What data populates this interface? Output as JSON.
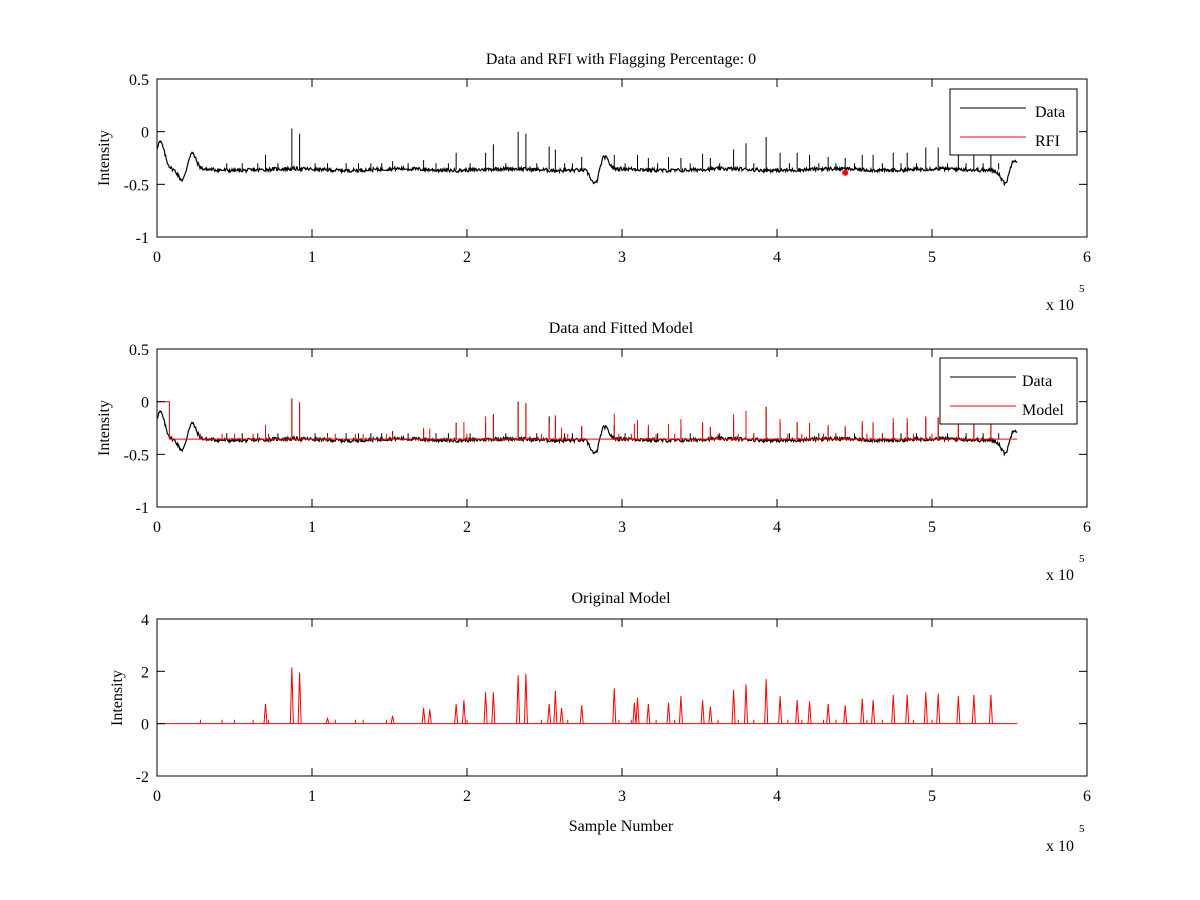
{
  "figure": {
    "background": "#ffffff",
    "data_color": "#000000",
    "model_color": "#ff0000",
    "exponent_label_base": "x 10",
    "exponent_label_power": "5"
  },
  "chart_data": [
    {
      "type": "line",
      "title": "Data and RFI with Flagging Percentage: 0",
      "xlabel": "",
      "ylabel": "Intensity",
      "xlim": [
        0,
        6
      ],
      "ylim": [
        -1,
        0.5
      ],
      "x_ticks": [
        "0",
        "1",
        "2",
        "3",
        "4",
        "5",
        "6"
      ],
      "y_ticks": [
        "-1",
        "-0.5",
        "0",
        "0.5"
      ],
      "x_scale_exponent": 5,
      "grid": false,
      "legend": "top-right",
      "baseline": -0.36,
      "x_end": 5.55,
      "dips": [
        {
          "x": 0.02,
          "y": -0.1
        },
        {
          "x": 0.17,
          "y": -0.49
        },
        {
          "x": 0.22,
          "y": -0.19
        },
        {
          "x": 2.83,
          "y": -0.52
        },
        {
          "x": 2.88,
          "y": -0.22
        },
        {
          "x": 5.48,
          "y": -0.52
        },
        {
          "x": 5.52,
          "y": -0.22
        }
      ],
      "spikes": [
        {
          "x": 0.7,
          "y": -0.22
        },
        {
          "x": 0.87,
          "y": 0.03
        },
        {
          "x": 0.92,
          "y": -0.02
        },
        {
          "x": 1.1,
          "y": -0.3
        },
        {
          "x": 1.52,
          "y": -0.28
        },
        {
          "x": 1.72,
          "y": -0.27
        },
        {
          "x": 1.93,
          "y": -0.2
        },
        {
          "x": 2.12,
          "y": -0.2
        },
        {
          "x": 2.17,
          "y": -0.12
        },
        {
          "x": 2.33,
          "y": -0.0
        },
        {
          "x": 2.38,
          "y": -0.02
        },
        {
          "x": 2.53,
          "y": -0.14
        },
        {
          "x": 2.57,
          "y": -0.17
        },
        {
          "x": 2.74,
          "y": -0.24
        },
        {
          "x": 2.95,
          "y": -0.22
        },
        {
          "x": 3.1,
          "y": -0.22
        },
        {
          "x": 3.17,
          "y": -0.25
        },
        {
          "x": 3.3,
          "y": -0.24
        },
        {
          "x": 3.38,
          "y": -0.25
        },
        {
          "x": 3.52,
          "y": -0.21
        },
        {
          "x": 3.57,
          "y": -0.25
        },
        {
          "x": 3.72,
          "y": -0.17
        },
        {
          "x": 3.8,
          "y": -0.11
        },
        {
          "x": 3.93,
          "y": -0.05
        },
        {
          "x": 4.02,
          "y": -0.2
        },
        {
          "x": 4.13,
          "y": -0.2
        },
        {
          "x": 4.21,
          "y": -0.22
        },
        {
          "x": 4.33,
          "y": -0.24
        },
        {
          "x": 4.44,
          "y": -0.25
        },
        {
          "x": 4.55,
          "y": -0.22
        },
        {
          "x": 4.62,
          "y": -0.22
        },
        {
          "x": 4.75,
          "y": -0.2
        },
        {
          "x": 4.84,
          "y": -0.2
        },
        {
          "x": 4.96,
          "y": -0.15
        },
        {
          "x": 5.04,
          "y": -0.15
        },
        {
          "x": 5.17,
          "y": -0.2
        },
        {
          "x": 5.27,
          "y": -0.19
        },
        {
          "x": 5.38,
          "y": -0.19
        }
      ],
      "minor_spikes": [
        0.45,
        0.55,
        0.65,
        0.78,
        1.02,
        1.22,
        1.3,
        1.38,
        1.45,
        1.62,
        1.8,
        1.88,
        2.02,
        2.25,
        2.45,
        2.63,
        2.68,
        3.02,
        3.23,
        3.44,
        3.63,
        3.85,
        4.08,
        4.27,
        4.38,
        4.5,
        4.68,
        4.8,
        4.9,
        5.1,
        5.22,
        5.33,
        5.43
      ],
      "series": [
        {
          "name": "Data",
          "color": "#000000"
        },
        {
          "name": "RFI",
          "color": "#ff0000",
          "points": [
            {
              "x": 4.44,
              "y": -0.39
            }
          ]
        }
      ]
    },
    {
      "type": "line",
      "title": "Data and Fitted Model",
      "xlabel": "",
      "ylabel": "Intensity",
      "xlim": [
        0,
        6
      ],
      "ylim": [
        -1,
        0.5
      ],
      "x_ticks": [
        "0",
        "1",
        "2",
        "3",
        "4",
        "5",
        "6"
      ],
      "y_ticks": [
        "-1",
        "-0.5",
        "0",
        "0.5"
      ],
      "x_scale_exponent": 5,
      "grid": false,
      "legend": "top-right",
      "model_step": {
        "x_start": 0.0,
        "x_end": 0.08,
        "y": 0.0
      },
      "series": [
        {
          "name": "Data",
          "color": "#000000"
        },
        {
          "name": "Model",
          "color": "#ff0000"
        }
      ]
    },
    {
      "type": "line",
      "title": "Original Model",
      "xlabel": "Sample Number",
      "ylabel": "Intensity",
      "xlim": [
        0,
        6
      ],
      "ylim": [
        -2,
        4
      ],
      "x_ticks": [
        "0",
        "1",
        "2",
        "3",
        "4",
        "5",
        "6"
      ],
      "y_ticks": [
        "-2",
        "0",
        "2",
        "4"
      ],
      "x_scale_exponent": 5,
      "grid": false,
      "baseline": 0,
      "x_end": 5.55,
      "spikes": [
        {
          "x": 0.7,
          "y": 0.75
        },
        {
          "x": 0.87,
          "y": 2.15
        },
        {
          "x": 0.92,
          "y": 1.95
        },
        {
          "x": 1.1,
          "y": 0.2
        },
        {
          "x": 1.52,
          "y": 0.3
        },
        {
          "x": 1.72,
          "y": 0.6
        },
        {
          "x": 1.76,
          "y": 0.55
        },
        {
          "x": 1.93,
          "y": 0.75
        },
        {
          "x": 1.98,
          "y": 0.9
        },
        {
          "x": 2.12,
          "y": 1.2
        },
        {
          "x": 2.17,
          "y": 1.2
        },
        {
          "x": 2.33,
          "y": 1.85
        },
        {
          "x": 2.38,
          "y": 1.9
        },
        {
          "x": 2.53,
          "y": 0.75
        },
        {
          "x": 2.57,
          "y": 1.25
        },
        {
          "x": 2.61,
          "y": 0.6
        },
        {
          "x": 2.74,
          "y": 0.7
        },
        {
          "x": 2.95,
          "y": 1.35
        },
        {
          "x": 3.08,
          "y": 0.8
        },
        {
          "x": 3.1,
          "y": 1.0
        },
        {
          "x": 3.17,
          "y": 0.75
        },
        {
          "x": 3.3,
          "y": 0.8
        },
        {
          "x": 3.38,
          "y": 1.05
        },
        {
          "x": 3.52,
          "y": 0.9
        },
        {
          "x": 3.57,
          "y": 0.65
        },
        {
          "x": 3.72,
          "y": 1.3
        },
        {
          "x": 3.8,
          "y": 1.5
        },
        {
          "x": 3.93,
          "y": 1.7
        },
        {
          "x": 4.02,
          "y": 1.05
        },
        {
          "x": 4.13,
          "y": 0.9
        },
        {
          "x": 4.21,
          "y": 0.85
        },
        {
          "x": 4.33,
          "y": 0.75
        },
        {
          "x": 4.44,
          "y": 0.7
        },
        {
          "x": 4.55,
          "y": 0.95
        },
        {
          "x": 4.62,
          "y": 0.9
        },
        {
          "x": 4.75,
          "y": 1.1
        },
        {
          "x": 4.84,
          "y": 1.1
        },
        {
          "x": 4.96,
          "y": 1.2
        },
        {
          "x": 5.04,
          "y": 1.15
        },
        {
          "x": 5.17,
          "y": 1.05
        },
        {
          "x": 5.27,
          "y": 1.1
        },
        {
          "x": 5.38,
          "y": 1.1
        }
      ],
      "minor_spikes": [
        0.28,
        0.42,
        0.5,
        0.62,
        0.72,
        1.15,
        1.28,
        1.33,
        1.48,
        2.0,
        2.48,
        2.65,
        2.98,
        3.06,
        3.22,
        3.34,
        3.62,
        3.75,
        3.85,
        4.07,
        4.16,
        4.3,
        4.38,
        4.58,
        4.68,
        4.88,
        5.0
      ]
    }
  ]
}
